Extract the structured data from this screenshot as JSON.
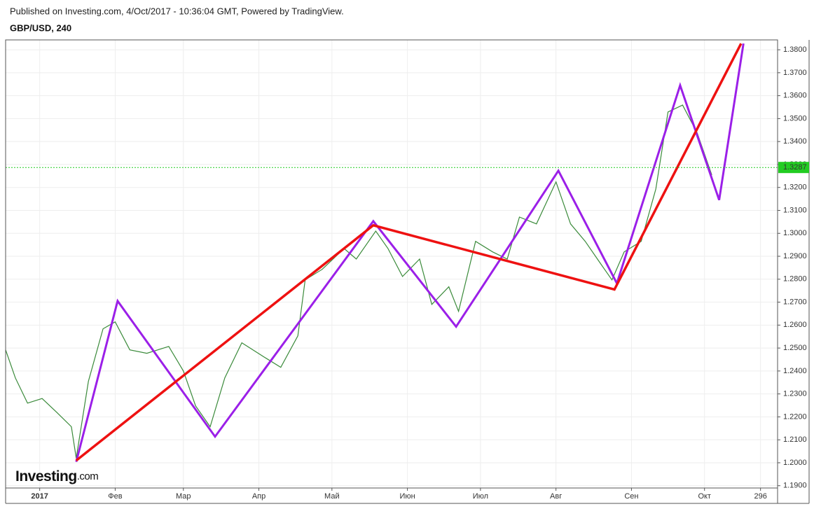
{
  "header": "Published on Investing.com, 4/Oct/2017 - 10:36:04 GMT, Powered by TradingView.",
  "logo": "Investing",
  "logo_suffix": ".com",
  "chart_data": {
    "type": "line",
    "title": "GBP/USD, 240",
    "last_value": 1.3287,
    "last_color": "#22cc22",
    "xlim": [
      -14,
      303
    ],
    "ylim": [
      1.189,
      1.3843
    ],
    "grid": true,
    "xticks": [
      {
        "value": 0,
        "label": "2017"
      },
      {
        "value": 31,
        "label": "Фев"
      },
      {
        "value": 59,
        "label": "Мар"
      },
      {
        "value": 90,
        "label": "Апр"
      },
      {
        "value": 120,
        "label": "Май"
      },
      {
        "value": 151,
        "label": "Июн"
      },
      {
        "value": 181,
        "label": "Июл"
      },
      {
        "value": 212,
        "label": "Авг"
      },
      {
        "value": 243,
        "label": "Сен"
      },
      {
        "value": 273,
        "label": "Окт"
      },
      296
    ],
    "yticks": [
      {
        "value": 1.19,
        "label": "1.1900"
      },
      {
        "value": 1.2,
        "label": "1.2000"
      },
      {
        "value": 1.21,
        "label": "1.2100"
      },
      {
        "value": 1.22,
        "label": "1.2200"
      },
      {
        "value": 1.23,
        "label": "1.2300"
      },
      {
        "value": 1.24,
        "label": "1.2400"
      },
      {
        "value": 1.25,
        "label": "1.2500"
      },
      {
        "value": 1.26,
        "label": "1.2600"
      },
      {
        "value": 1.27,
        "label": "1.2700"
      },
      {
        "value": 1.28,
        "label": "1.2800"
      },
      {
        "value": 1.29,
        "label": "1.2900"
      },
      {
        "value": 1.3,
        "label": "1.3000"
      },
      {
        "value": 1.31,
        "label": "1.3100"
      },
      {
        "value": 1.32,
        "label": "1.3200"
      },
      {
        "value": 1.33,
        "label": "1.3300"
      },
      {
        "value": 1.34,
        "label": "1.3400"
      },
      {
        "value": 1.35,
        "label": "1.3500"
      },
      {
        "value": 1.36,
        "label": "1.3600"
      },
      {
        "value": 1.37,
        "label": "1.3700"
      },
      {
        "value": 1.38,
        "label": "1.3800"
      }
    ],
    "series": [
      {
        "color": "#3a8a3a",
        "width": 1.2,
        "x": [
          -14,
          -10,
          -5,
          1,
          7,
          13,
          15,
          20,
          26,
          31,
          37,
          44,
          53,
          59,
          64,
          70,
          76,
          83,
          92,
          99,
          106,
          109,
          116,
          125,
          130,
          138,
          143,
          149,
          156,
          161,
          168,
          172,
          179,
          186,
          192,
          197,
          204,
          212,
          218,
          224,
          230,
          235,
          240,
          247,
          253,
          258,
          264,
          270,
          276
        ],
        "values": [
          1.2492,
          1.237,
          1.226,
          1.228,
          1.222,
          1.2157,
          1.202,
          1.2355,
          1.2584,
          1.2614,
          1.2492,
          1.2477,
          1.2507,
          1.24,
          1.2248,
          1.2157,
          1.237,
          1.2523,
          1.2462,
          1.2416,
          1.2553,
          1.2797,
          1.2843,
          1.2934,
          1.2888,
          1.301,
          1.2934,
          1.2812,
          1.2888,
          1.269,
          1.2767,
          1.266,
          1.2965,
          1.2919,
          1.2888,
          1.3071,
          1.3041,
          1.3224,
          1.3041,
          1.2965,
          1.2873,
          1.2797,
          1.2919,
          1.2965,
          1.3193,
          1.3529,
          1.3559,
          1.3437,
          1.3254
        ]
      },
      {
        "color": "#9b1fe8",
        "width": 3,
        "x": [
          15,
          32,
          72,
          137,
          171,
          213,
          237,
          263,
          279,
          289
        ],
        "values": [
          1.2004,
          1.2705,
          1.2114,
          1.3053,
          1.2593,
          1.3273,
          1.2782,
          1.3645,
          1.3145,
          1.3827
        ]
      },
      {
        "color": "#ee1111",
        "width": 3.5,
        "x": [
          15,
          137,
          236,
          288
        ],
        "values": [
          1.201,
          1.3035,
          1.2755,
          1.3827
        ]
      }
    ]
  }
}
